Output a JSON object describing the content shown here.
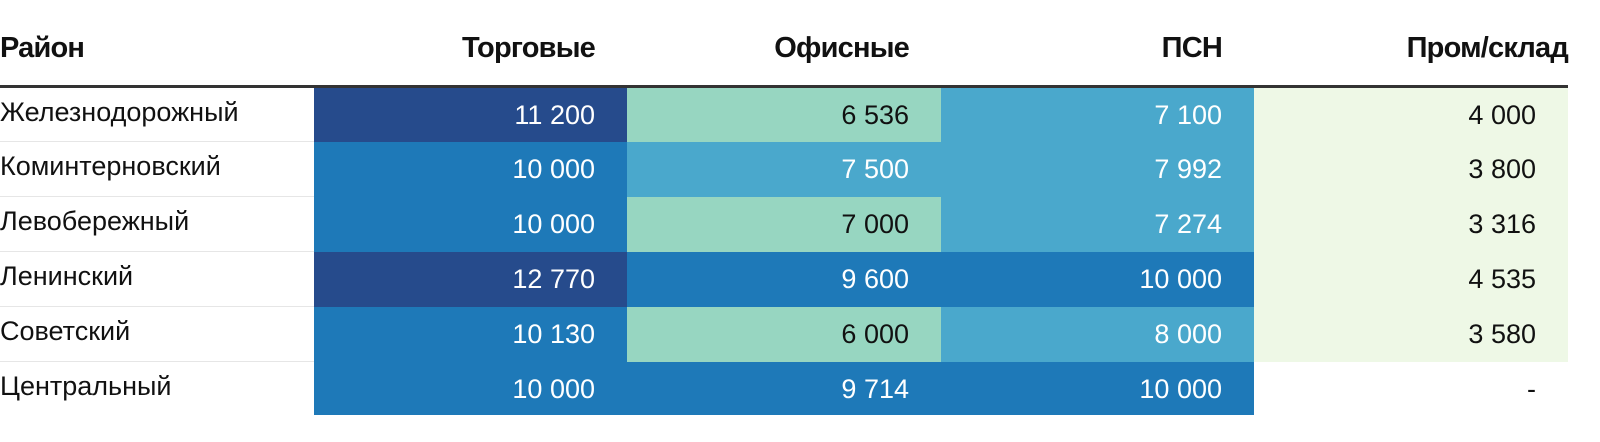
{
  "chart_data": {
    "type": "table",
    "columns": [
      "Район",
      "Торговые",
      "Офисные",
      "ПСН",
      "Пром/склад"
    ],
    "rows": [
      {
        "district": "Железнодорожный",
        "values": [
          "11 200",
          "6 536",
          "7 100",
          "4 000"
        ]
      },
      {
        "district": "Коминтерновский",
        "values": [
          "10 000",
          "7 500",
          "7 992",
          "3 800"
        ]
      },
      {
        "district": "Левобережный",
        "values": [
          "10 000",
          "7 000",
          "7 274",
          "3 316"
        ]
      },
      {
        "district": "Ленинский",
        "values": [
          "12 770",
          "9 600",
          "10 000",
          "4 535"
        ]
      },
      {
        "district": "Советский",
        "values": [
          "10 130",
          "6 000",
          "8 000",
          "3 580"
        ]
      },
      {
        "district": "Центральный",
        "values": [
          "10 000",
          "9 714",
          "10 000",
          "-"
        ]
      }
    ],
    "colors": {
      "dark": "#264b8c",
      "mid": "#1e79b8",
      "light": "#4aa8cc",
      "mint": "#97d6c1",
      "pale": "#eef8e6"
    }
  }
}
